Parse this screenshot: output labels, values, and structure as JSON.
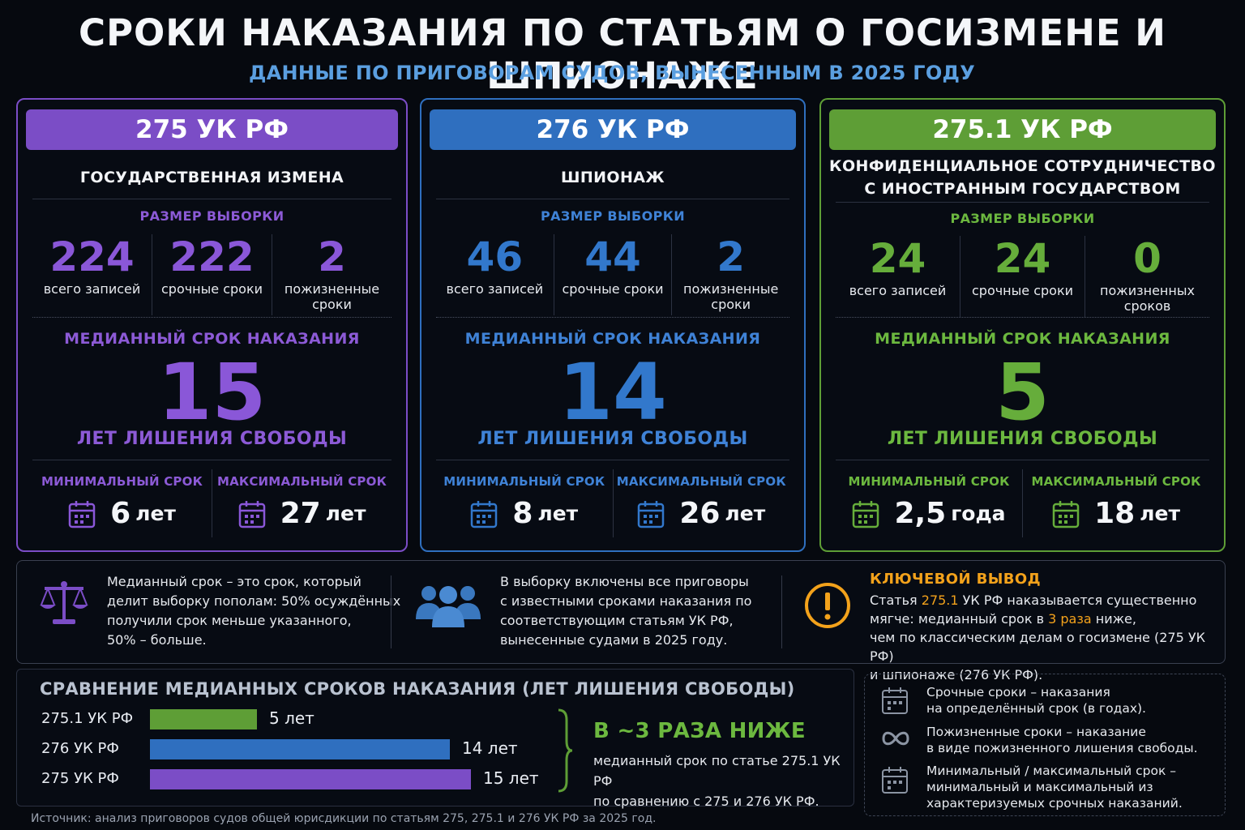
{
  "title": "СРОКИ НАКАЗАНИЯ ПО СТАТЬЯМ О ГОСИЗМЕНЕ И ШПИОНАЖЕ",
  "subtitle": "ДАННЫЕ ПО ПРИГОВОРАМ СУДОВ, ВЫНЕСЕННЫМ В 2025 ГОДУ",
  "labels": {
    "sample": "РАЗМЕР ВЫБОРКИ",
    "median": "МЕДИАННЫЙ СРОК НАКАЗАНИЯ",
    "years": "ЛЕТ ЛИШЕНИЯ СВОБОДЫ",
    "min": "МИНИМАЛЬНЫЙ СРОК",
    "max": "МАКСИМАЛЬНЫЙ СРОК",
    "total": "всего записей",
    "fixed": "срочные сроки"
  },
  "cards": [
    {
      "article": "275 УК РФ",
      "name": "ГОСУДАРСТВЕННАЯ ИЗМЕНА",
      "color": "#7b4dc6",
      "total": "224",
      "fixed": "222",
      "life": "2",
      "life_label_1": "пожизненные",
      "life_label_2": "сроки",
      "median": "15",
      "min_value": "6",
      "min_unit": "лет",
      "max_value": "27",
      "max_unit": "лет"
    },
    {
      "article": "276 УК РФ",
      "name": "ШПИОНАЖ",
      "color": "#2f6fbf",
      "total": "46",
      "fixed": "44",
      "life": "2",
      "life_label_1": "пожизненные",
      "life_label_2": "сроки",
      "median": "14",
      "min_value": "8",
      "min_unit": "лет",
      "max_value": "26",
      "max_unit": "лет"
    },
    {
      "article": "275.1 УК РФ",
      "name_1": "КОНФИДЕНЦИАЛЬНОЕ СОТРУДНИЧЕСТВО",
      "name_2": "С ИНОСТРАННЫМ ГОСУДАРСТВОМ",
      "color": "#5e9e36",
      "total": "24",
      "fixed": "24",
      "life": "0",
      "life_label_1": "пожизненных",
      "life_label_2": "сроков",
      "median": "5",
      "min_value": "2,5",
      "min_unit": "года",
      "max_value": "18",
      "max_unit": "лет"
    }
  ],
  "info": {
    "median_def": [
      "Медианный срок – это срок, который",
      "делит выборку пополам: 50% осуждённых",
      "получили срок меньше указанного,",
      "50% – больше."
    ],
    "sample_def": [
      "В выборку включены все приговоры",
      "с известными сроками наказания по",
      "соответствующим статьям УК РФ,",
      "вынесенные судами в 2025 году."
    ],
    "key_title": "КЛЮЧЕВОЙ ВЫВОД",
    "key_l1a": "Статья ",
    "key_l1b": "275.1",
    "key_l1c": " УК РФ наказывается существенно",
    "key_l2a": "мягче: медианный срок в ",
    "key_l2b": "3 раза",
    "key_l2c": " ниже,",
    "key_l3": "чем по классическим делам о госизмене (275 УК РФ)",
    "key_l4": "и шпионаже (276 УК РФ)."
  },
  "comparison": {
    "title": "СРАВНЕНИЕ МЕДИАННЫХ СРОКОВ НАКАЗАНИЯ (ЛЕТ ЛИШЕНИЯ СВОБОДЫ)",
    "headline": "В ~3 РАЗА НИЖЕ",
    "note_1": "медианный срок по статье 275.1 УК РФ",
    "note_2": "по сравнению с 275 и 276 УК РФ."
  },
  "chart_data": {
    "type": "bar",
    "orientation": "horizontal",
    "title": "СРАВНЕНИЕ МЕДИАННЫХ СРОКОВ НАКАЗАНИЯ (ЛЕТ ЛИШЕНИЯ СВОБОДЫ)",
    "categories": [
      "275.1 УК РФ",
      "276 УК РФ",
      "275 УК РФ"
    ],
    "values": [
      5,
      14,
      15
    ],
    "value_labels": [
      "5 лет",
      "14 лет",
      "15 лет"
    ],
    "colors": [
      "#5e9e36",
      "#2f6fbf",
      "#7b4dc6"
    ],
    "xlim": [
      0,
      15
    ],
    "grid": false
  },
  "legend": [
    [
      "Срочные сроки – наказания",
      "на определённый срок (в годах)."
    ],
    [
      "Пожизненные сроки – наказание",
      "в виде пожизненного лишения свободы."
    ],
    [
      "Минимальный / максимальный срок –",
      "минимальный и максимальный из",
      "характеризуемых срочных наказаний."
    ]
  ],
  "source": "Источник: анализ приговоров судов общей юрисдикции по статьям 275, 275.1 и 276 УК РФ за 2025 год."
}
